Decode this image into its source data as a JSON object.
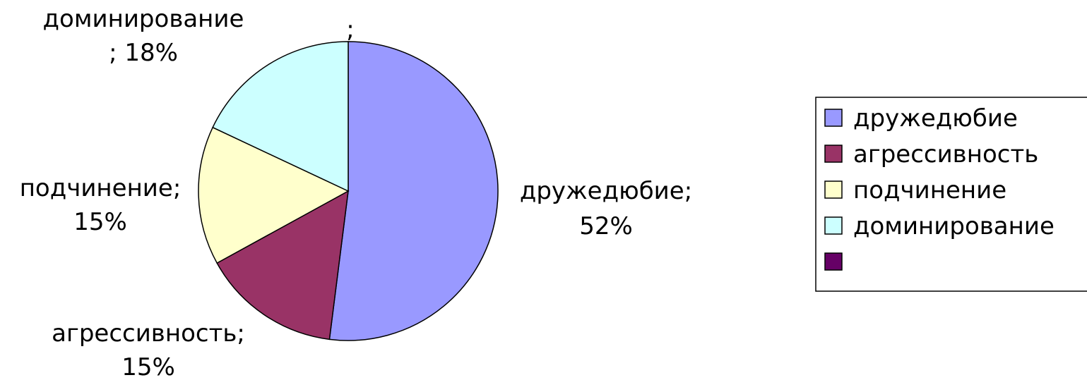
{
  "chart_data": {
    "type": "pie",
    "categories": [
      "дружедюбие",
      "агрессивность",
      "подчинение",
      "доминирование",
      ""
    ],
    "values": [
      52,
      15,
      15,
      18,
      0
    ],
    "data_labels": [
      [
        "дружедюбие;",
        "52%"
      ],
      [
        "агрессивность;",
        "15%"
      ],
      [
        "подчинение;",
        "15%"
      ],
      [
        "доминирование",
        "; 18%"
      ],
      [
        ";"
      ]
    ],
    "colors": [
      "#9999FF",
      "#993366",
      "#FFFFCC",
      "#CCFFFF",
      "#660066"
    ],
    "legend": {
      "position": "right",
      "items": [
        "дружедюбие",
        "агрессивность",
        "подчинение",
        "доминирование",
        ""
      ]
    },
    "start_angle_deg": 0,
    "direction": "clockwise",
    "units": "%"
  }
}
